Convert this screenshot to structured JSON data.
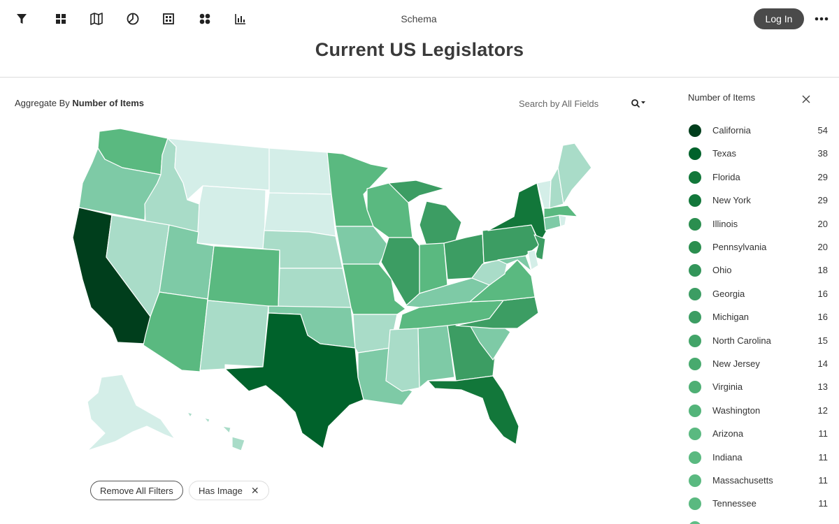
{
  "header": {
    "schema_label": "Schema",
    "login_label": "Log In",
    "title": "Current US Legislators",
    "toolbar_icons": [
      "filter-icon",
      "grid-view-icon",
      "map-view-icon",
      "pie-view-icon",
      "table-view-icon",
      "cluster-view-icon",
      "bar-chart-icon"
    ]
  },
  "main": {
    "aggregate_prefix": "Aggregate By",
    "aggregate_value": "Number of Items",
    "search_placeholder": "Search by All Fields"
  },
  "filters": {
    "remove_all_label": "Remove All Filters",
    "chips": [
      {
        "label": "Has Image"
      }
    ]
  },
  "legend": {
    "title": "Number of Items",
    "items": [
      {
        "name": "California",
        "count": "54",
        "color": "#003e1c"
      },
      {
        "name": "Texas",
        "count": "38",
        "color": "#00622b"
      },
      {
        "name": "Florida",
        "count": "29",
        "color": "#12773a"
      },
      {
        "name": "New York",
        "count": "29",
        "color": "#12773a"
      },
      {
        "name": "Illinois",
        "count": "20",
        "color": "#2b8e4f"
      },
      {
        "name": "Pennsylvania",
        "count": "20",
        "color": "#2b8e4f"
      },
      {
        "name": "Ohio",
        "count": "18",
        "color": "#33955a"
      },
      {
        "name": "Georgia",
        "count": "16",
        "color": "#3c9d63"
      },
      {
        "name": "Michigan",
        "count": "16",
        "color": "#3c9d63"
      },
      {
        "name": "North Carolina",
        "count": "15",
        "color": "#42a468"
      },
      {
        "name": "New Jersey",
        "count": "14",
        "color": "#48aa6e"
      },
      {
        "name": "Virginia",
        "count": "13",
        "color": "#4eaf74"
      },
      {
        "name": "Washington",
        "count": "12",
        "color": "#53b47a"
      },
      {
        "name": "Arizona",
        "count": "11",
        "color": "#5ab980"
      },
      {
        "name": "Indiana",
        "count": "11",
        "color": "#5ab980"
      },
      {
        "name": "Massachusetts",
        "count": "11",
        "color": "#5ab980"
      },
      {
        "name": "Tennessee",
        "count": "11",
        "color": "#5ab980"
      }
    ]
  },
  "map_colors": {
    "darkest": "#003e1c",
    "dark": "#00622b",
    "strong": "#12773a",
    "medium": "#3c9d63",
    "mid": "#5ab980",
    "light": "#7ecaa6",
    "pale": "#a9dcc8",
    "palest": "#d4eee8"
  }
}
